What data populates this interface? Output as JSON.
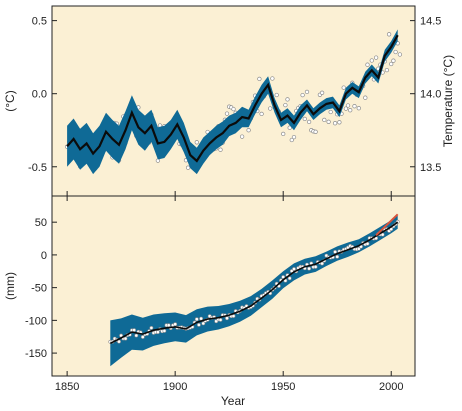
{
  "colors": {
    "panel_bg": "#fbf0d4",
    "band": "#0f6a96",
    "line": "#0b0b0b",
    "points": "#8c8c8c",
    "recent_segment": "#d8533a",
    "axis": "#222222"
  },
  "chart_data": [
    {
      "type": "line",
      "panel": "top",
      "ylabel": "(°C)",
      "y2label": "Temperature (°C)",
      "xlim": [
        1843,
        2011
      ],
      "ylim": [
        -0.7,
        0.6
      ],
      "y2lim": [
        13.3,
        14.6
      ],
      "yticks": [
        0.5,
        0.0,
        -0.5
      ],
      "ytick_labels": [
        "0.5",
        "0.0",
        "-0.5"
      ],
      "y2ticks": [
        14.5,
        14.0,
        13.5
      ],
      "y2tick_labels": [
        "14.5",
        "14.0",
        "13.5"
      ],
      "grid": false,
      "series": [
        {
          "role": "smoothed-line",
          "x": [
            1850,
            1853,
            1856,
            1859,
            1862,
            1865,
            1868,
            1871,
            1874,
            1877,
            1880,
            1883,
            1886,
            1889,
            1892,
            1895,
            1898,
            1901,
            1904,
            1907,
            1910,
            1913,
            1916,
            1919,
            1922,
            1925,
            1928,
            1931,
            1934,
            1937,
            1940,
            1943,
            1946,
            1949,
            1952,
            1955,
            1958,
            1961,
            1964,
            1967,
            1970,
            1973,
            1976,
            1979,
            1982,
            1985,
            1988,
            1991,
            1994,
            1997,
            2000,
            2003
          ],
          "y": [
            -0.36,
            -0.31,
            -0.38,
            -0.34,
            -0.41,
            -0.36,
            -0.26,
            -0.31,
            -0.35,
            -0.25,
            -0.13,
            -0.23,
            -0.27,
            -0.22,
            -0.34,
            -0.33,
            -0.28,
            -0.21,
            -0.3,
            -0.42,
            -0.46,
            -0.39,
            -0.34,
            -0.3,
            -0.27,
            -0.22,
            -0.2,
            -0.16,
            -0.17,
            -0.08,
            0.0,
            0.06,
            -0.08,
            -0.18,
            -0.15,
            -0.2,
            -0.13,
            -0.08,
            -0.14,
            -0.1,
            -0.07,
            -0.06,
            -0.12,
            0.0,
            0.04,
            0.01,
            0.11,
            0.16,
            0.11,
            0.26,
            0.32,
            0.4
          ]
        },
        {
          "role": "uncertainty-band",
          "x": [
            1850,
            1853,
            1856,
            1859,
            1862,
            1865,
            1868,
            1871,
            1874,
            1877,
            1880,
            1883,
            1886,
            1889,
            1892,
            1895,
            1898,
            1901,
            1904,
            1907,
            1910,
            1913,
            1916,
            1919,
            1922,
            1925,
            1928,
            1931,
            1934,
            1937,
            1940,
            1943,
            1946,
            1949,
            1952,
            1955,
            1958,
            1961,
            1964,
            1967,
            1970,
            1973,
            1976,
            1979,
            1982,
            1985,
            1988,
            1991,
            1994,
            1997,
            2000,
            2003
          ],
          "half_width": [
            0.14,
            0.14,
            0.14,
            0.14,
            0.14,
            0.14,
            0.13,
            0.13,
            0.13,
            0.13,
            0.12,
            0.12,
            0.12,
            0.11,
            0.11,
            0.11,
            0.1,
            0.1,
            0.1,
            0.09,
            0.09,
            0.09,
            0.08,
            0.08,
            0.08,
            0.07,
            0.07,
            0.07,
            0.06,
            0.06,
            0.06,
            0.06,
            0.05,
            0.05,
            0.05,
            0.05,
            0.05,
            0.04,
            0.04,
            0.04,
            0.04,
            0.04,
            0.04,
            0.04,
            0.04,
            0.04,
            0.04,
            0.04,
            0.04,
            0.04,
            0.04,
            0.04
          ]
        }
      ]
    },
    {
      "type": "line",
      "panel": "bottom",
      "xlabel": "Year",
      "ylabel": "(mm)",
      "xlim": [
        1843,
        2011
      ],
      "ylim": [
        -185,
        90
      ],
      "xticks": [
        1850,
        1900,
        1950,
        2000
      ],
      "xtick_labels": [
        "1850",
        "1900",
        "1950",
        "2000"
      ],
      "yticks": [
        50,
        0,
        -50,
        -100,
        -150
      ],
      "ytick_labels": [
        "50",
        "0",
        "-50",
        "-100",
        "-150"
      ],
      "grid": false,
      "series": [
        {
          "role": "smoothed-line",
          "x": [
            1870,
            1875,
            1880,
            1885,
            1890,
            1895,
            1900,
            1905,
            1910,
            1915,
            1920,
            1925,
            1930,
            1935,
            1940,
            1945,
            1950,
            1955,
            1960,
            1965,
            1970,
            1975,
            1980,
            1985,
            1990,
            1995,
            2000,
            2003
          ],
          "y": [
            -135,
            -127,
            -118,
            -121,
            -115,
            -112,
            -110,
            -113,
            -103,
            -98,
            -96,
            -92,
            -86,
            -78,
            -66,
            -53,
            -38,
            -26,
            -18,
            -14,
            -6,
            2,
            8,
            14,
            23,
            33,
            43,
            50
          ]
        },
        {
          "role": "uncertainty-band",
          "x": [
            1870,
            1875,
            1880,
            1885,
            1890,
            1895,
            1900,
            1905,
            1910,
            1915,
            1920,
            1925,
            1930,
            1935,
            1940,
            1945,
            1950,
            1955,
            1960,
            1965,
            1970,
            1975,
            1980,
            1985,
            1990,
            1995,
            2000,
            2003
          ],
          "half_width": [
            35,
            30,
            27,
            25,
            24,
            23,
            22,
            21,
            20,
            19,
            18,
            17,
            16,
            15,
            14,
            14,
            13,
            13,
            12,
            12,
            11,
            11,
            11,
            10,
            10,
            10,
            10,
            10
          ]
        },
        {
          "role": "recent-segment",
          "x": [
            1993,
            2003
          ],
          "y": [
            30,
            62
          ]
        }
      ]
    }
  ]
}
